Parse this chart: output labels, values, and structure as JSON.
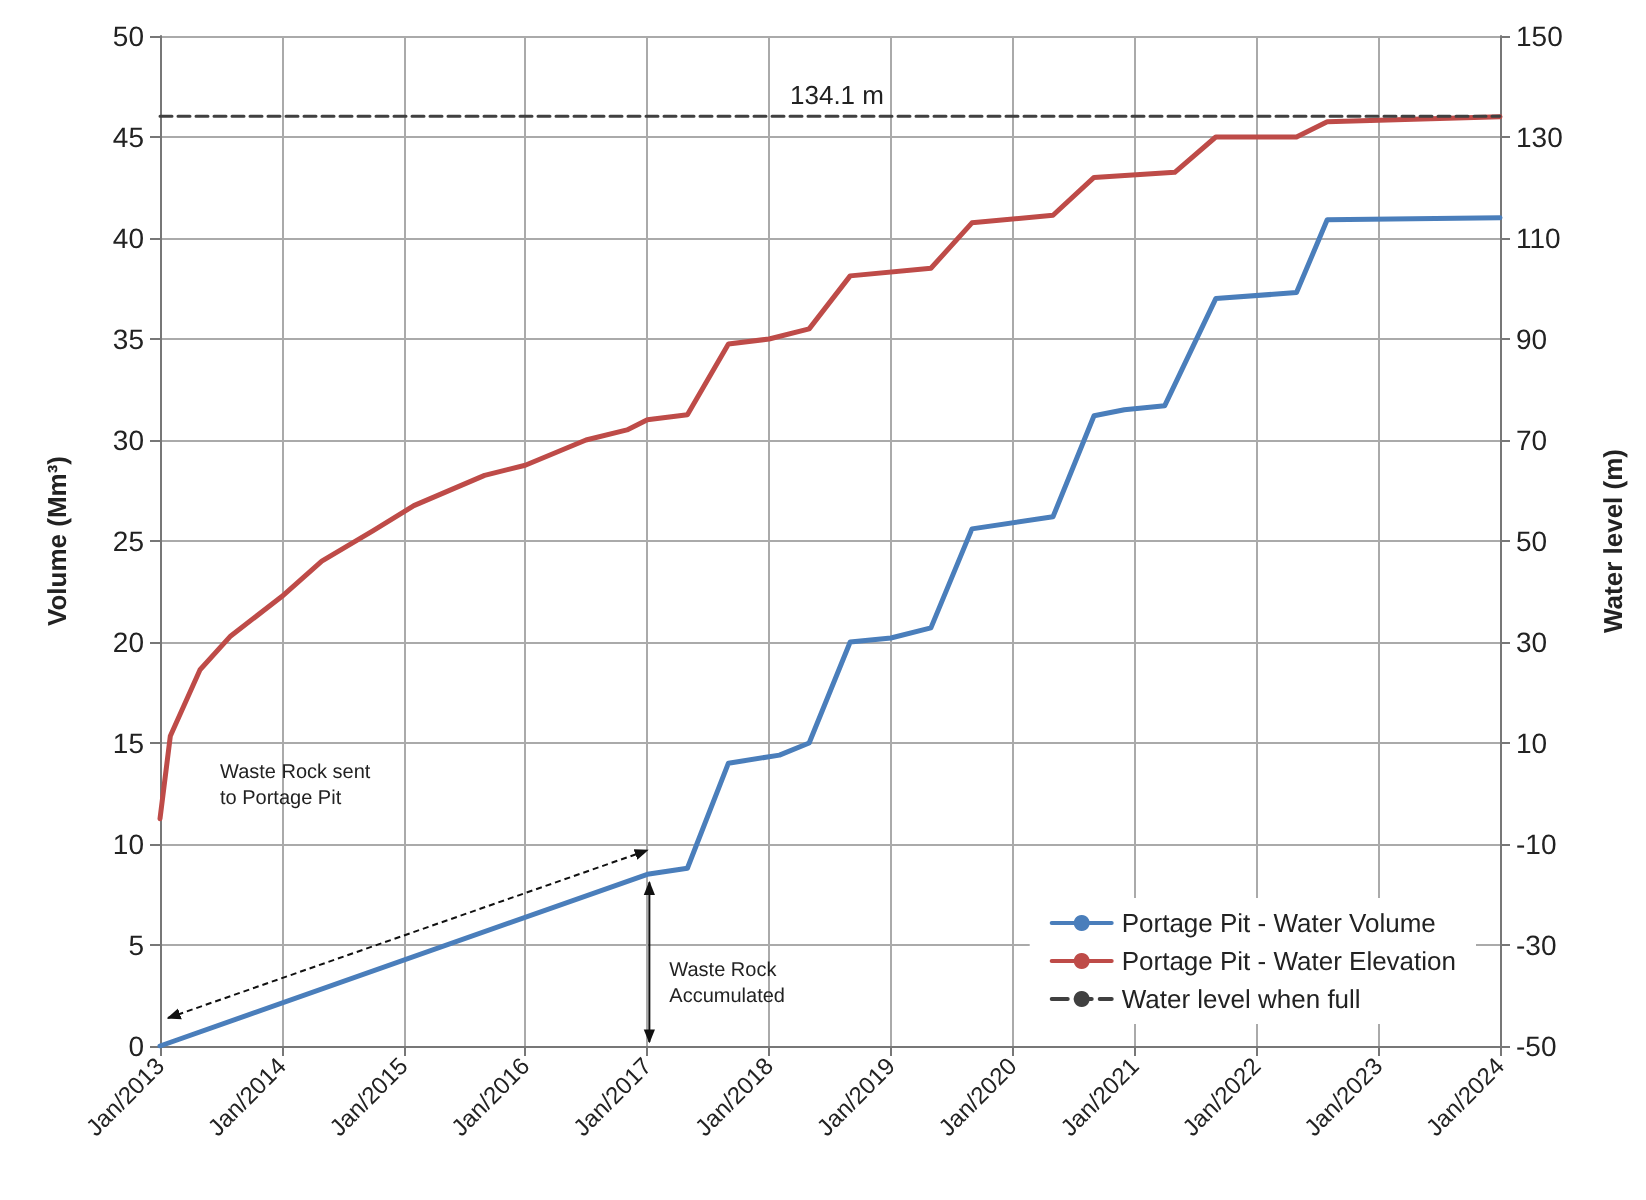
{
  "chart_data": {
    "type": "line",
    "ylabel": "Volume (Mm³)",
    "y2label": "Water level (m)",
    "xlim": [
      "2013-01",
      "2024-01"
    ],
    "xticks": [
      {
        "value": "2013-01",
        "label": "Jan/2013"
      },
      {
        "value": "2014-01",
        "label": "Jan/2014"
      },
      {
        "value": "2015-01",
        "label": "Jan/2015"
      },
      {
        "value": "2016-01",
        "label": "Jan/2016"
      },
      {
        "value": "2017-01",
        "label": "Jan/2017"
      },
      {
        "value": "2018-01",
        "label": "Jan/2018"
      },
      {
        "value": "2019-01",
        "label": "Jan/2019"
      },
      {
        "value": "2020-01",
        "label": "Jan/2020"
      },
      {
        "value": "2021-01",
        "label": "Jan/2021"
      },
      {
        "value": "2022-01",
        "label": "Jan/2022"
      },
      {
        "value": "2023-01",
        "label": "Jan/2023"
      },
      {
        "value": "2024-01",
        "label": "Jan/2024"
      }
    ],
    "ylim": [
      0,
      50
    ],
    "yticks": [
      0,
      5,
      10,
      15,
      20,
      25,
      30,
      35,
      40,
      45,
      50
    ],
    "y2lim": [
      -50,
      150
    ],
    "y2ticks": [
      -50,
      -30,
      -10,
      10,
      30,
      50,
      70,
      90,
      110,
      130,
      150
    ],
    "grid": true,
    "legend": "bottom right",
    "marker": "none",
    "series": [
      {
        "name": "Portage Pit - Water Volume",
        "color": "#4a7ebb",
        "x": [
          "2013-01",
          "2017-01",
          "2017-05",
          "2017-09",
          "2018-02",
          "2018-05",
          "2018-09",
          "2019-01",
          "2019-05",
          "2019-09",
          "2020-05",
          "2020-09",
          "2020-12",
          "2021-04",
          "2021-09",
          "2022-05",
          "2022-08",
          "2024-01"
        ],
        "values": [
          0,
          8.5,
          8.8,
          14,
          14.4,
          15,
          20,
          20.2,
          20.7,
          25.6,
          26.2,
          31.2,
          31.5,
          31.7,
          37,
          37.3,
          40.9,
          41
        ]
      },
      {
        "name": "Portage Pit - Water Elevation",
        "color": "#be4b48",
        "axis": "y2",
        "x": [
          "2013-01",
          "2013-02",
          "2013-05",
          "2013-08",
          "2014-01",
          "2014-05",
          "2014-10",
          "2015-02",
          "2015-09",
          "2016-01",
          "2016-07",
          "2016-11",
          "2017-01",
          "2017-05",
          "2017-09",
          "2018-01",
          "2018-05",
          "2018-09",
          "2019-05",
          "2019-09",
          "2020-05",
          "2020-09",
          "2021-05",
          "2021-09",
          "2022-05",
          "2022-08",
          "2024-01"
        ],
        "values": [
          -5,
          11.4,
          24.5,
          31.2,
          39,
          46,
          52,
          57,
          63,
          65,
          70,
          72,
          74,
          75,
          89,
          90,
          92,
          102.5,
          104,
          113,
          114.5,
          122,
          123,
          130,
          130,
          133,
          134
        ]
      },
      {
        "name": "Water level when full",
        "color": "#404040",
        "axis": "y2",
        "line_style": "dashed",
        "x": [
          "2013-01",
          "2024-01"
        ],
        "values": [
          134.1,
          134.1
        ]
      }
    ],
    "annotations": [
      "134.1 m",
      "Waste Rock sent\nto Portage Pit",
      "Waste Rock\nAccumulated"
    ]
  }
}
